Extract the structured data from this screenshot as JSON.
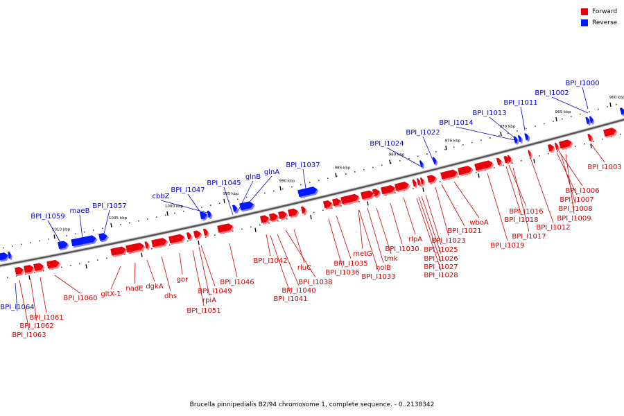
{
  "legend": [
    {
      "label": "Forward",
      "color": "#e8000b"
    },
    {
      "label": "Reverse",
      "color": "#0019ff"
    }
  ],
  "caption": "Brucella pinnipedialis B2/94 chromosome 1, complete sequence. - 0..2138342",
  "colors": {
    "forward": "#e8000b",
    "forward_shadow": "#ff8080",
    "reverse": "#0019ff",
    "reverse_shadow": "#8080ff",
    "forward_label": "#cc0000",
    "reverse_label": "#0000cc"
  },
  "ticks": [
    "960 kbp",
    "965 kbp",
    "970 kbp",
    "975 kbp",
    "980 kbp",
    "985 kbp",
    "990 kbp",
    "995 kbp",
    "1000 kbp",
    "1005 kbp",
    "1010 kbp"
  ],
  "reverse_labels": [
    "BPI_I1000",
    "BPI_I1002",
    "BPI_I1011",
    "BPI_I1013",
    "BPI_I1014",
    "BPI_I1022",
    "BPI_I1024",
    "BPI_I1037",
    "glnA",
    "glnB",
    "BPI_I1045",
    "BPI_I1047",
    "cbbZ",
    "BPI_I1057",
    "maeB",
    "BPI_I1059",
    "BPI_I1064"
  ],
  "forward_labels": [
    "BPI_I1003",
    "BPI_I1006",
    "BPI_I1007",
    "BPI_I1008",
    "BPI_I1009",
    "BPI_I1012",
    "BPI_I1016",
    "BPI_I1018",
    "BPI_I1017",
    "BPI_I1019",
    "wboA",
    "BPI_I1021",
    "BPI_I1023",
    "rlpA",
    "BPI_I1025",
    "BPI_I1026",
    "BPI_I1027",
    "BPI_I1028",
    "BPI_I1030",
    "tmk",
    "metG",
    "holB",
    "BPI_I1033",
    "BPI_I1035",
    "BPI_I1036",
    "rluC",
    "BPI_I1038",
    "BPI_I1042",
    "BPI_I1040",
    "BPI_I1041",
    "BPI_I1046",
    "BPI_I1049",
    "rpiA",
    "BPI_I1051",
    "gor",
    "dhs",
    "dgkA",
    "nadE",
    "gltX-1",
    "BPI_I1060",
    "BPI_I1061",
    "BPI_I1062",
    "BPI_I1063"
  ]
}
